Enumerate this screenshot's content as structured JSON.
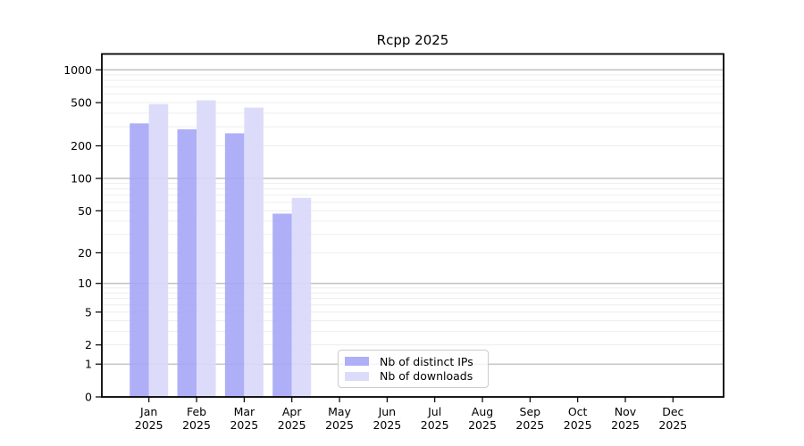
{
  "chart_data": {
    "type": "bar",
    "title": "Rcpp 2025",
    "categories": [
      "Jan",
      "Feb",
      "Mar",
      "Apr",
      "May",
      "Jun",
      "Jul",
      "Aug",
      "Sep",
      "Oct",
      "Nov",
      "Dec"
    ],
    "year_label": "2025",
    "series": [
      {
        "name": "Nb of distinct IPs",
        "color": "#a6a6f7",
        "values": [
          322,
          284,
          261,
          47,
          0,
          0,
          0,
          0,
          0,
          0,
          0,
          0
        ]
      },
      {
        "name": "Nb of downloads",
        "color": "#d8d8fa",
        "values": [
          485,
          525,
          450,
          66,
          0,
          0,
          0,
          0,
          0,
          0,
          0,
          0
        ]
      }
    ],
    "yscale": "log1p",
    "yticks": [
      0,
      1,
      2,
      5,
      10,
      20,
      50,
      100,
      200,
      500,
      1000
    ],
    "ylim": [
      0,
      1395
    ],
    "grid": "horizontal log gridlines, majors at powers of 10",
    "legend_position": "lower center inside plot"
  }
}
